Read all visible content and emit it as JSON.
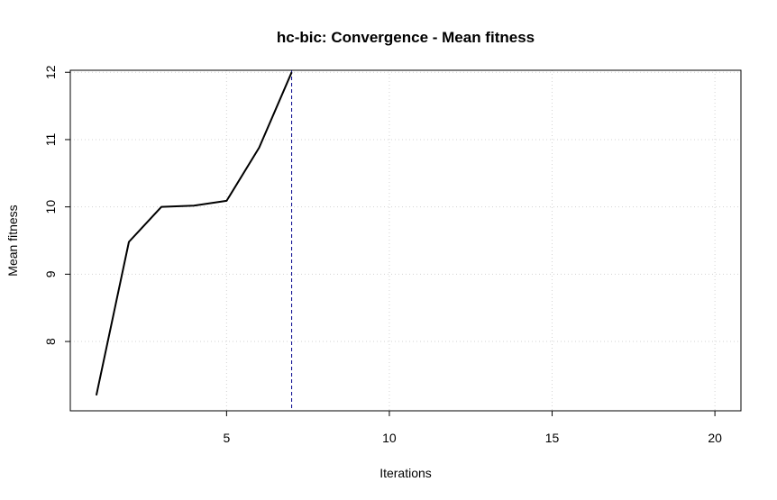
{
  "chart_data": {
    "type": "line",
    "title": "hc-bic: Convergence - Mean fitness",
    "xlabel": "Iterations",
    "ylabel": "Mean fitness",
    "xlim": [
      0.2,
      20.8
    ],
    "ylim": [
      6.97,
      12.03
    ],
    "x_ticks": [
      5,
      10,
      15,
      20
    ],
    "y_ticks": [
      8,
      9,
      10,
      11,
      12
    ],
    "grid": true,
    "series": [
      {
        "x": [
          1,
          2,
          3,
          4,
          5,
          6,
          7
        ],
        "values": [
          7.2,
          9.48,
          10.0,
          10.02,
          10.09,
          10.88,
          12.0
        ]
      }
    ],
    "reference_line": {
      "x": 7,
      "style": "dashed",
      "color": "#00008b"
    },
    "colors": {
      "line": "#000000",
      "grid": "#d3d3d3",
      "reference": "#00008b"
    }
  }
}
